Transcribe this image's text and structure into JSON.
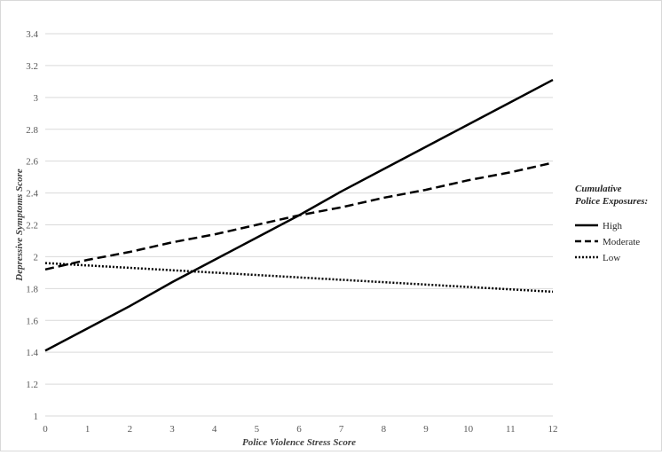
{
  "chart_data": {
    "type": "line",
    "xlabel": "Police Violence Stress Score",
    "ylabel": "Depressive Symptoms Score",
    "x": [
      0,
      1,
      2,
      3,
      4,
      5,
      6,
      7,
      8,
      9,
      10,
      11,
      12
    ],
    "x_ticks": [
      "0",
      "1",
      "2",
      "3",
      "4",
      "5",
      "6",
      "7",
      "8",
      "9",
      "10",
      "11",
      "12"
    ],
    "y_ticks": [
      "1",
      "1.2",
      "1.4",
      "1.6",
      "1.8",
      "2",
      "2.2",
      "2.4",
      "2.6",
      "2.8",
      "3",
      "3.2",
      "3.4"
    ],
    "xlim": [
      0,
      12
    ],
    "ylim": [
      1,
      3.4
    ],
    "grid": "horizontal",
    "legend": {
      "title": "Cumulative Police Exposures:",
      "title_line1": "Cumulative",
      "title_line2": "Police Exposures:",
      "placement": "right"
    },
    "series": [
      {
        "name": "High",
        "dash": "solid",
        "color": "#000000",
        "values": [
          1.41,
          1.55,
          1.69,
          1.84,
          1.98,
          2.12,
          2.26,
          2.41,
          2.55,
          2.69,
          2.83,
          2.97,
          3.11
        ]
      },
      {
        "name": "Moderate",
        "dash": "dashed",
        "color": "#000000",
        "values": [
          1.92,
          1.98,
          2.03,
          2.09,
          2.14,
          2.2,
          2.26,
          2.31,
          2.37,
          2.42,
          2.48,
          2.53,
          2.59
        ]
      },
      {
        "name": "Low",
        "dash": "dotted",
        "color": "#000000",
        "values": [
          1.96,
          1.945,
          1.93,
          1.915,
          1.9,
          1.885,
          1.87,
          1.855,
          1.84,
          1.825,
          1.81,
          1.795,
          1.78
        ]
      }
    ]
  }
}
